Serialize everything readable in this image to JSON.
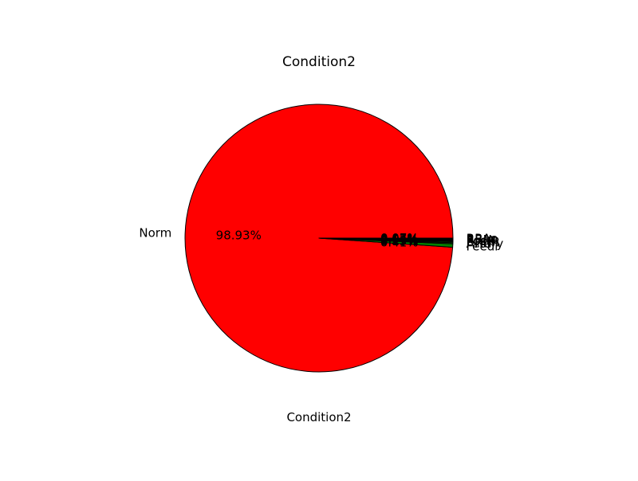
{
  "chart_data": {
    "type": "pie",
    "title": "Condition2",
    "xlabel": "Condition2",
    "start_angle_deg": 0,
    "counterclockwise": true,
    "slices": [
      {
        "label": "Norm",
        "value": 98.93,
        "pct_label": "98.93%",
        "color": "#ff0000"
      },
      {
        "label": "Feedr",
        "value": 0.41,
        "pct_label": "0.41%",
        "color": "#008000"
      },
      {
        "label": "Artery",
        "value": 0.13,
        "pct_label": "0.13%",
        "color": "#008000"
      },
      {
        "label": "RRNn",
        "value": 0.13,
        "pct_label": "0.13%",
        "color": "#008000"
      },
      {
        "label": "PosN",
        "value": 0.14,
        "pct_label": "0.14%",
        "color": "#000000"
      },
      {
        "label": "PosA",
        "value": 0.07,
        "pct_label": "0.07%",
        "color": "#000000"
      },
      {
        "label": "RRNe",
        "value": 0.07,
        "pct_label": "0.07%",
        "color": "#000000"
      },
      {
        "label": "RRAn",
        "value": 0.07,
        "pct_label": "0.07%",
        "color": "#000000"
      },
      {
        "label": "RRAe",
        "value": 0.07,
        "pct_label": "0.07%",
        "color": "#000000"
      }
    ]
  }
}
